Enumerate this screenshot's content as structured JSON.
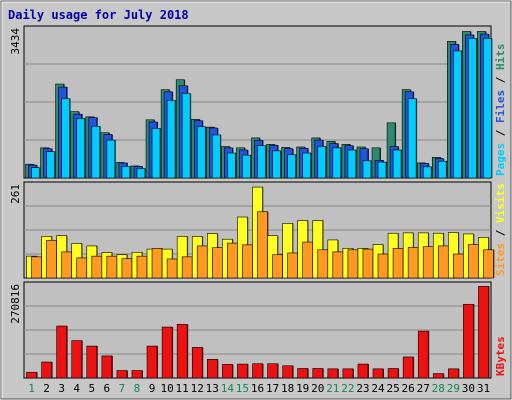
{
  "chart_data": {
    "type": "bar",
    "title": "Daily usage for July 2018",
    "colors": {
      "hits": "#2e8a6e",
      "files": "#2255dd",
      "pages": "#00ccff",
      "visits": "#ffff22",
      "sites": "#ff9922",
      "kbytes": "#ee1111",
      "weekday": "#000000",
      "weekend": "#118855",
      "panel_bg": "#c0c0c0",
      "frame_bg": "#c8c8c8",
      "slash": "#000000"
    },
    "categories": [
      "1",
      "2",
      "3",
      "4",
      "5",
      "6",
      "7",
      "8",
      "9",
      "10",
      "11",
      "12",
      "13",
      "14",
      "15",
      "16",
      "17",
      "18",
      "19",
      "20",
      "21",
      "22",
      "23",
      "24",
      "25",
      "26",
      "27",
      "28",
      "29",
      "30",
      "31"
    ],
    "weekend_days": [
      "1",
      "7",
      "8",
      "14",
      "15",
      "21",
      "22",
      "28",
      "29"
    ],
    "panels": [
      {
        "id": "hits_files_pages",
        "ymax_label": "3434",
        "ymax": 3434,
        "legend": [
          "Pages",
          "Files",
          "Hits"
        ],
        "series": [
          {
            "name": "Hits",
            "color_key": "hits",
            "values": [
              320,
              700,
              2180,
              1540,
              1420,
              1050,
              360,
              280,
              1350,
              2050,
              2280,
              1360,
              1180,
              730,
              700,
              930,
              780,
              710,
              720,
              930,
              850,
              780,
              720,
              700,
              1280,
              2050,
              350,
              480,
              3170,
              3400,
              3400
            ]
          },
          {
            "name": "Files",
            "color_key": "files",
            "values": [
              300,
              680,
              2110,
              1480,
              1400,
              1010,
              350,
              270,
              1300,
              2000,
              2140,
              1330,
              1160,
              700,
              650,
              870,
              760,
              680,
              690,
              880,
              800,
              750,
              680,
              410,
              730,
              2000,
              340,
              450,
              3100,
              3320,
              3340
            ]
          },
          {
            "name": "Pages",
            "color_key": "pages",
            "values": [
              240,
              610,
              1840,
              1380,
              1200,
              880,
              270,
              220,
              1150,
              1800,
              1960,
              1190,
              1000,
              580,
              530,
              750,
              630,
              540,
              580,
              730,
              700,
              650,
              400,
              370,
              650,
              1840,
              260,
              390,
              2950,
              3240,
              3240
            ]
          }
        ]
      },
      {
        "id": "visits_sites",
        "ymax_label": "261",
        "ymax": 261,
        "legend": [
          "Sites",
          "Visits",
          ""
        ],
        "series": [
          {
            "name": "Visits",
            "color_key": "visits",
            "values": [
              62,
              118,
              120,
              98,
              91,
              72,
              66,
              73,
              82,
              82,
              118,
              118,
              126,
              110,
              173,
              258,
              120,
              155,
              163,
              163,
              108,
              84,
              84,
              95,
              127,
              128,
              128,
              127,
              129,
              125,
              115
            ]
          },
          {
            "name": "Sites",
            "color_key": "sites",
            "values": [
              60,
              107,
              74,
              57,
              62,
              62,
              55,
              62,
              84,
              54,
              60,
              91,
              86,
              99,
              94,
              188,
              66,
              71,
              102,
              80,
              74,
              80,
              82,
              68,
              84,
              87,
              89,
              91,
              68,
              95,
              80
            ]
          }
        ]
      },
      {
        "id": "kbytes",
        "ymax_label": "270816",
        "ymax": 270816,
        "legend": [
          "KBytes",
          "",
          ""
        ],
        "series": [
          {
            "name": "KBytes",
            "color_key": "kbytes",
            "values": [
              17000,
              47000,
              153000,
              110000,
              94000,
              65000,
              22000,
              22000,
              94000,
              150000,
              158000,
              90000,
              55000,
              40000,
              41000,
              42000,
              42000,
              36000,
              28000,
              28000,
              27000,
              27000,
              41000,
              27000,
              28000,
              62000,
              138000,
              13000,
              27000,
              217000,
              270000
            ]
          }
        ]
      }
    ]
  }
}
